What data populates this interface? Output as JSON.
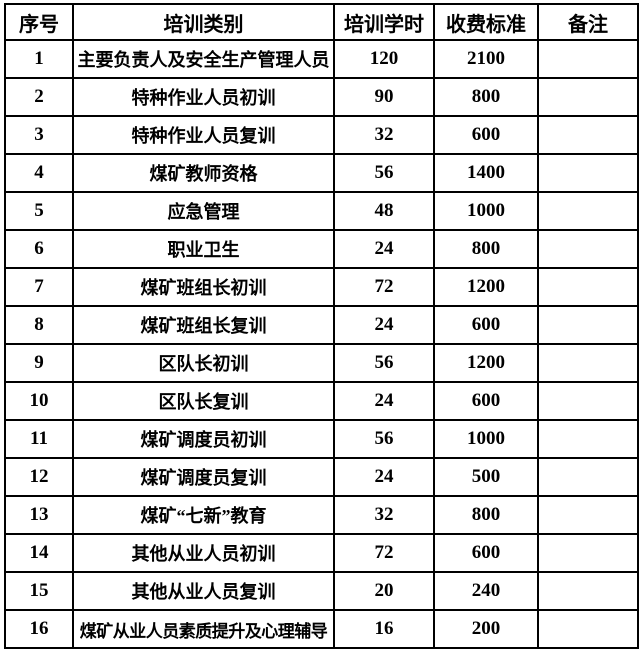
{
  "colors": {
    "background": "#ffffff",
    "border": "#000000",
    "text": "#000000"
  },
  "table": {
    "headers": [
      "序号",
      "培训类别",
      "培训学时",
      "收费标准",
      "备注"
    ],
    "rows": [
      {
        "no": "1",
        "category": "主要负责人及安全生产管理人员",
        "hours": "120",
        "fee": "2100",
        "remark": ""
      },
      {
        "no": "2",
        "category": "特种作业人员初训",
        "hours": "90",
        "fee": "800",
        "remark": ""
      },
      {
        "no": "3",
        "category": "特种作业人员复训",
        "hours": "32",
        "fee": "600",
        "remark": ""
      },
      {
        "no": "4",
        "category": "煤矿教师资格",
        "hours": "56",
        "fee": "1400",
        "remark": ""
      },
      {
        "no": "5",
        "category": "应急管理",
        "hours": "48",
        "fee": "1000",
        "remark": ""
      },
      {
        "no": "6",
        "category": "职业卫生",
        "hours": "24",
        "fee": "800",
        "remark": ""
      },
      {
        "no": "7",
        "category": "煤矿班组长初训",
        "hours": "72",
        "fee": "1200",
        "remark": ""
      },
      {
        "no": "8",
        "category": "煤矿班组长复训",
        "hours": "24",
        "fee": "600",
        "remark": ""
      },
      {
        "no": "9",
        "category": "区队长初训",
        "hours": "56",
        "fee": "1200",
        "remark": ""
      },
      {
        "no": "10",
        "category": "区队长复训",
        "hours": "24",
        "fee": "600",
        "remark": ""
      },
      {
        "no": "11",
        "category": "煤矿调度员初训",
        "hours": "56",
        "fee": "1000",
        "remark": ""
      },
      {
        "no": "12",
        "category": "煤矿调度员复训",
        "hours": "24",
        "fee": "500",
        "remark": ""
      },
      {
        "no": "13",
        "category": "煤矿“七新”教育",
        "hours": "32",
        "fee": "800",
        "remark": ""
      },
      {
        "no": "14",
        "category": "其他从业人员初训",
        "hours": "72",
        "fee": "600",
        "remark": ""
      },
      {
        "no": "15",
        "category": "其他从业人员复训",
        "hours": "20",
        "fee": "240",
        "remark": ""
      },
      {
        "no": "16",
        "category": "煤矿从业人员素质提升及心理辅导",
        "hours": "16",
        "fee": "200",
        "remark": ""
      }
    ]
  }
}
